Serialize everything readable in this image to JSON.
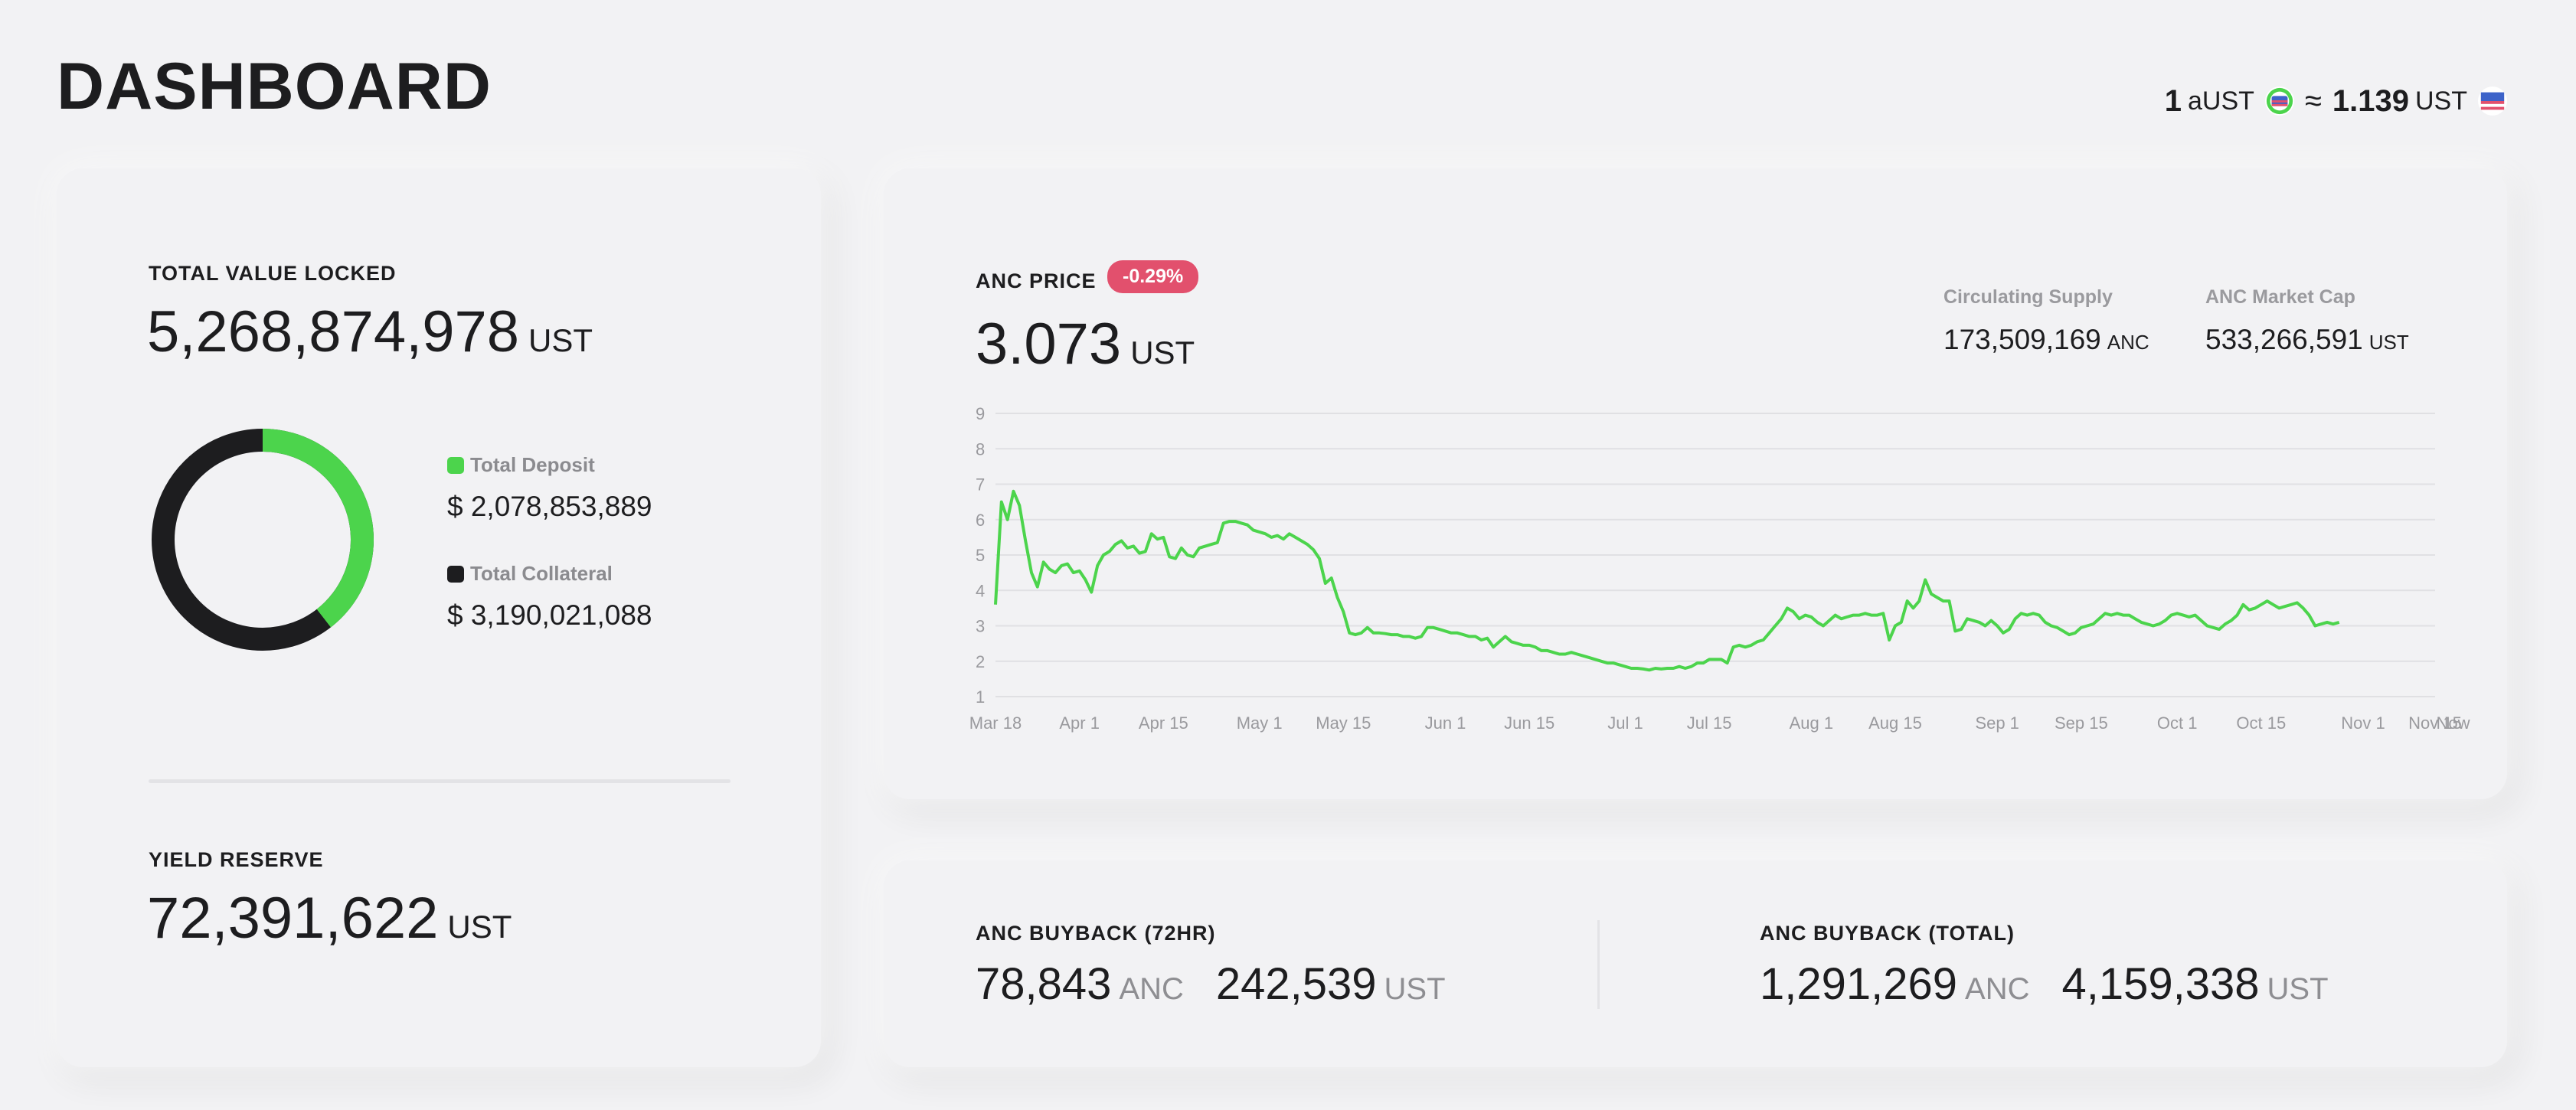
{
  "header": {
    "title": "DASHBOARD",
    "rate": {
      "left_amount": "1",
      "left_unit": "aUST",
      "approx": "≈",
      "right_amount": "1.139",
      "right_unit": "UST"
    }
  },
  "tvl": {
    "label": "TOTAL VALUE LOCKED",
    "value": "5,268,874,978",
    "unit": "UST",
    "deposit": {
      "label": "Total Deposit",
      "value": "$ 2,078,853,889",
      "color": "#4cd44c"
    },
    "collateral": {
      "label": "Total Collateral",
      "value": "$ 3,190,021,088",
      "color": "#1d1d1f"
    },
    "deposit_fraction": 0.3946
  },
  "yield": {
    "label": "YIELD RESERVE",
    "value": "72,391,622",
    "unit": "UST"
  },
  "anc": {
    "label": "ANC PRICE",
    "change": "-0.29%",
    "change_color": "#e2506d",
    "value": "3.073",
    "unit": "UST",
    "supply_label": "Circulating Supply",
    "supply_value": "173,509,169",
    "supply_unit": "ANC",
    "cap_label": "ANC Market Cap",
    "cap_value": "533,266,591",
    "cap_unit": "UST"
  },
  "chart_data": {
    "type": "line",
    "line_color": "#4cd44c",
    "grid": true,
    "ylim": [
      1,
      9
    ],
    "y_ticks": [
      "1",
      "2",
      "3",
      "4",
      "5",
      "6",
      "7",
      "8",
      "9"
    ],
    "xlim_days": [
      0,
      240
    ],
    "x_ticks": [
      {
        "label": "Mar 18",
        "day": 0
      },
      {
        "label": "Apr 1",
        "day": 14
      },
      {
        "label": "Apr 15",
        "day": 28
      },
      {
        "label": "May 1",
        "day": 44
      },
      {
        "label": "May 15",
        "day": 58
      },
      {
        "label": "Jun 1",
        "day": 75
      },
      {
        "label": "Jun 15",
        "day": 89
      },
      {
        "label": "Jul 1",
        "day": 105
      },
      {
        "label": "Jul 15",
        "day": 119
      },
      {
        "label": "Aug 1",
        "day": 136
      },
      {
        "label": "Aug 15",
        "day": 150
      },
      {
        "label": "Sep 1",
        "day": 167
      },
      {
        "label": "Sep 15",
        "day": 181
      },
      {
        "label": "Oct 1",
        "day": 197
      },
      {
        "label": "Oct 15",
        "day": 211
      },
      {
        "label": "Nov 1",
        "day": 228
      },
      {
        "label": "Nov 15",
        "day": 240
      },
      {
        "label": "Now",
        "day": 243
      }
    ],
    "points": [
      [
        0,
        3.6
      ],
      [
        1,
        6.5
      ],
      [
        2,
        6.0
      ],
      [
        3,
        6.8
      ],
      [
        4,
        6.4
      ],
      [
        5,
        5.4
      ],
      [
        6,
        4.5
      ],
      [
        7,
        4.1
      ],
      [
        8,
        4.8
      ],
      [
        9,
        4.6
      ],
      [
        10,
        4.5
      ],
      [
        11,
        4.7
      ],
      [
        12,
        4.75
      ],
      [
        13,
        4.5
      ],
      [
        14,
        4.55
      ],
      [
        15,
        4.3
      ],
      [
        16,
        3.95
      ],
      [
        17,
        4.7
      ],
      [
        18,
        5.0
      ],
      [
        19,
        5.1
      ],
      [
        20,
        5.3
      ],
      [
        21,
        5.4
      ],
      [
        22,
        5.2
      ],
      [
        23,
        5.25
      ],
      [
        24,
        5.05
      ],
      [
        25,
        5.1
      ],
      [
        26,
        5.6
      ],
      [
        27,
        5.45
      ],
      [
        28,
        5.5
      ],
      [
        29,
        4.95
      ],
      [
        30,
        4.9
      ],
      [
        31,
        5.2
      ],
      [
        32,
        5.0
      ],
      [
        33,
        4.95
      ],
      [
        34,
        5.2
      ],
      [
        35,
        5.25
      ],
      [
        36,
        5.3
      ],
      [
        37,
        5.35
      ],
      [
        38,
        5.9
      ],
      [
        39,
        5.95
      ],
      [
        40,
        5.95
      ],
      [
        41,
        5.9
      ],
      [
        42,
        5.85
      ],
      [
        43,
        5.7
      ],
      [
        44,
        5.65
      ],
      [
        45,
        5.6
      ],
      [
        46,
        5.5
      ],
      [
        47,
        5.55
      ],
      [
        48,
        5.45
      ],
      [
        49,
        5.6
      ],
      [
        50,
        5.5
      ],
      [
        51,
        5.4
      ],
      [
        52,
        5.3
      ],
      [
        53,
        5.15
      ],
      [
        54,
        4.9
      ],
      [
        55,
        4.2
      ],
      [
        56,
        4.35
      ],
      [
        57,
        3.8
      ],
      [
        58,
        3.4
      ],
      [
        59,
        2.8
      ],
      [
        60,
        2.75
      ],
      [
        61,
        2.8
      ],
      [
        62,
        2.95
      ],
      [
        63,
        2.8
      ],
      [
        64,
        2.8
      ],
      [
        65,
        2.78
      ],
      [
        66,
        2.75
      ],
      [
        67,
        2.75
      ],
      [
        68,
        2.7
      ],
      [
        69,
        2.7
      ],
      [
        70,
        2.65
      ],
      [
        71,
        2.7
      ],
      [
        72,
        2.95
      ],
      [
        73,
        2.95
      ],
      [
        74,
        2.9
      ],
      [
        75,
        2.85
      ],
      [
        76,
        2.8
      ],
      [
        77,
        2.8
      ],
      [
        78,
        2.75
      ],
      [
        79,
        2.7
      ],
      [
        80,
        2.7
      ],
      [
        81,
        2.6
      ],
      [
        82,
        2.65
      ],
      [
        83,
        2.4
      ],
      [
        84,
        2.55
      ],
      [
        85,
        2.7
      ],
      [
        86,
        2.55
      ],
      [
        87,
        2.5
      ],
      [
        88,
        2.45
      ],
      [
        89,
        2.45
      ],
      [
        90,
        2.4
      ],
      [
        91,
        2.3
      ],
      [
        92,
        2.3
      ],
      [
        93,
        2.25
      ],
      [
        94,
        2.2
      ],
      [
        95,
        2.2
      ],
      [
        96,
        2.25
      ],
      [
        97,
        2.2
      ],
      [
        98,
        2.15
      ],
      [
        99,
        2.1
      ],
      [
        100,
        2.05
      ],
      [
        101,
        2.0
      ],
      [
        102,
        1.95
      ],
      [
        103,
        1.95
      ],
      [
        104,
        1.9
      ],
      [
        105,
        1.85
      ],
      [
        106,
        1.8
      ],
      [
        107,
        1.8
      ],
      [
        108,
        1.78
      ],
      [
        109,
        1.75
      ],
      [
        110,
        1.8
      ],
      [
        111,
        1.78
      ],
      [
        112,
        1.8
      ],
      [
        113,
        1.8
      ],
      [
        114,
        1.85
      ],
      [
        115,
        1.8
      ],
      [
        116,
        1.85
      ],
      [
        117,
        1.95
      ],
      [
        118,
        1.95
      ],
      [
        119,
        2.05
      ],
      [
        120,
        2.05
      ],
      [
        121,
        2.05
      ],
      [
        122,
        1.95
      ],
      [
        123,
        2.4
      ],
      [
        124,
        2.45
      ],
      [
        125,
        2.4
      ],
      [
        126,
        2.45
      ],
      [
        127,
        2.55
      ],
      [
        128,
        2.6
      ],
      [
        129,
        2.8
      ],
      [
        130,
        3.0
      ],
      [
        131,
        3.2
      ],
      [
        132,
        3.5
      ],
      [
        133,
        3.4
      ],
      [
        134,
        3.2
      ],
      [
        135,
        3.3
      ],
      [
        136,
        3.25
      ],
      [
        137,
        3.1
      ],
      [
        138,
        3.0
      ],
      [
        139,
        3.15
      ],
      [
        140,
        3.3
      ],
      [
        141,
        3.2
      ],
      [
        142,
        3.25
      ],
      [
        143,
        3.3
      ],
      [
        144,
        3.3
      ],
      [
        145,
        3.35
      ],
      [
        146,
        3.3
      ],
      [
        147,
        3.3
      ],
      [
        148,
        3.35
      ],
      [
        149,
        2.6
      ],
      [
        150,
        3.0
      ],
      [
        151,
        3.1
      ],
      [
        152,
        3.7
      ],
      [
        153,
        3.5
      ],
      [
        154,
        3.7
      ],
      [
        155,
        4.3
      ],
      [
        156,
        3.9
      ],
      [
        157,
        3.8
      ],
      [
        158,
        3.7
      ],
      [
        159,
        3.7
      ],
      [
        160,
        2.85
      ],
      [
        161,
        2.9
      ],
      [
        162,
        3.2
      ],
      [
        163,
        3.15
      ],
      [
        164,
        3.1
      ],
      [
        165,
        3.0
      ],
      [
        166,
        3.15
      ],
      [
        167,
        3.0
      ],
      [
        168,
        2.8
      ],
      [
        169,
        2.9
      ],
      [
        170,
        3.2
      ],
      [
        171,
        3.35
      ],
      [
        172,
        3.3
      ],
      [
        173,
        3.35
      ],
      [
        174,
        3.3
      ],
      [
        175,
        3.1
      ],
      [
        176,
        3.0
      ],
      [
        177,
        2.95
      ],
      [
        178,
        2.85
      ],
      [
        179,
        2.75
      ],
      [
        180,
        2.8
      ],
      [
        181,
        2.95
      ],
      [
        182,
        3.0
      ],
      [
        183,
        3.05
      ],
      [
        184,
        3.2
      ],
      [
        185,
        3.35
      ],
      [
        186,
        3.3
      ],
      [
        187,
        3.35
      ],
      [
        188,
        3.3
      ],
      [
        189,
        3.3
      ],
      [
        190,
        3.2
      ],
      [
        191,
        3.1
      ],
      [
        192,
        3.05
      ],
      [
        193,
        3.0
      ],
      [
        194,
        3.05
      ],
      [
        195,
        3.15
      ],
      [
        196,
        3.3
      ],
      [
        197,
        3.35
      ],
      [
        198,
        3.3
      ],
      [
        199,
        3.25
      ],
      [
        200,
        3.3
      ],
      [
        201,
        3.15
      ],
      [
        202,
        3.0
      ],
      [
        203,
        2.95
      ],
      [
        204,
        2.9
      ],
      [
        205,
        3.05
      ],
      [
        206,
        3.15
      ],
      [
        207,
        3.3
      ],
      [
        208,
        3.6
      ],
      [
        209,
        3.45
      ],
      [
        210,
        3.5
      ],
      [
        211,
        3.6
      ],
      [
        212,
        3.7
      ],
      [
        213,
        3.6
      ],
      [
        214,
        3.5
      ],
      [
        215,
        3.55
      ],
      [
        216,
        3.6
      ],
      [
        217,
        3.65
      ],
      [
        218,
        3.5
      ],
      [
        219,
        3.3
      ],
      [
        220,
        3.0
      ],
      [
        221,
        3.05
      ],
      [
        222,
        3.1
      ],
      [
        223,
        3.05
      ],
      [
        224,
        3.1
      ]
    ]
  },
  "buyback": {
    "h72": {
      "label": "ANC BUYBACK (72HR)",
      "anc": "78,843",
      "anc_unit": "ANC",
      "ust": "242,539",
      "ust_unit": "UST"
    },
    "total": {
      "label": "ANC BUYBACK (TOTAL)",
      "anc": "1,291,269",
      "anc_unit": "ANC",
      "ust": "4,159,338",
      "ust_unit": "UST"
    }
  }
}
